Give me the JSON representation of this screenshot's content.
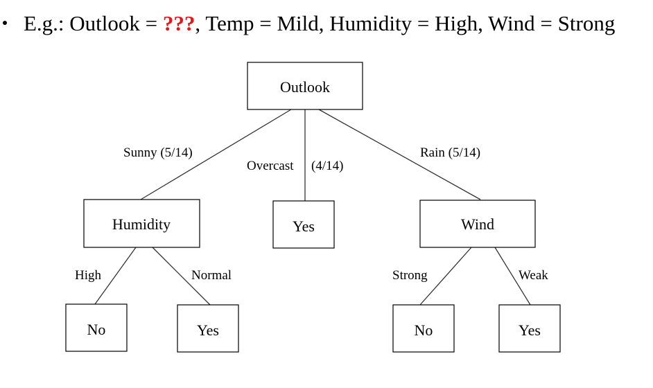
{
  "example": {
    "prefix": "E.g.: Outlook = ",
    "unknown": "???",
    "rest": ", Temp = Mild, Humidity = High, Wind = Strong"
  },
  "tree": {
    "root": "Outlook",
    "humidity": "Humidity",
    "overcast_leaf": "Yes",
    "wind": "Wind",
    "humidity_high_leaf": "No",
    "humidity_normal_leaf": "Yes",
    "wind_strong_leaf": "No",
    "wind_weak_leaf": "Yes"
  },
  "edges": {
    "sunny": "Sunny (5/14)",
    "overcast": "Overcast",
    "overcast_count": "(4/14)",
    "rain": "Rain (5/14)",
    "high": "High",
    "normal": "Normal",
    "strong": "Strong",
    "weak": "Weak"
  }
}
